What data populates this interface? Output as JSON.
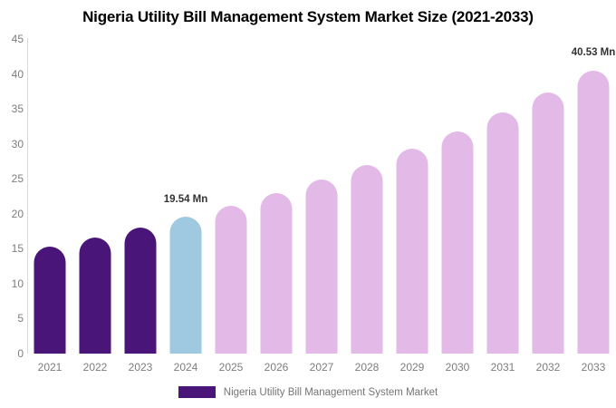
{
  "title": "Nigeria Utility Bill Management System Market Size (2021-2033)",
  "chart_data": {
    "type": "bar",
    "categories": [
      "2021",
      "2022",
      "2023",
      "2024",
      "2025",
      "2026",
      "2027",
      "2028",
      "2029",
      "2030",
      "2031",
      "2032",
      "2033"
    ],
    "series": [
      {
        "name": "Nigeria Utility Bill Management System Market",
        "values": [
          15.33,
          16.62,
          18.02,
          19.54,
          21.19,
          22.97,
          24.91,
          27.01,
          29.29,
          31.76,
          34.44,
          37.35,
          40.53
        ]
      }
    ],
    "bar_colors": [
      "#4A1579",
      "#4A1579",
      "#4A1579",
      "#9EC9E0",
      "#E2B9E7",
      "#E2B9E7",
      "#E2B9E7",
      "#E2B9E7",
      "#E2B9E7",
      "#E2B9E7",
      "#E2B9E7",
      "#E2B9E7",
      "#E2B9E7"
    ],
    "ylim": [
      0,
      45
    ],
    "yticks": [
      0,
      5,
      10,
      15,
      20,
      25,
      30,
      35,
      40,
      45
    ],
    "grid": false,
    "legend_position": "bottom",
    "annotations": [
      {
        "category": "2024",
        "text": "19.54 Mn"
      },
      {
        "category": "2033",
        "text": "40.53 Mn"
      }
    ],
    "title": "Nigeria Utility Bill Management System Market Size (2021-2033)",
    "xlabel": "",
    "ylabel": ""
  },
  "legend": {
    "label": "Nigeria Utility Bill Management System Market",
    "swatch_color": "#4A1579"
  },
  "colors": {
    "historical_bar": "#4A1579",
    "highlight_bar": "#9EC9E0",
    "forecast_bar": "#E2B9E7",
    "axis_line": "#D9D9D9",
    "tick_text": "#7D7D7D",
    "annotation_text": "#333333",
    "legend_text": "#757575",
    "title_text": "#000000",
    "background": "#FFFFFF"
  }
}
